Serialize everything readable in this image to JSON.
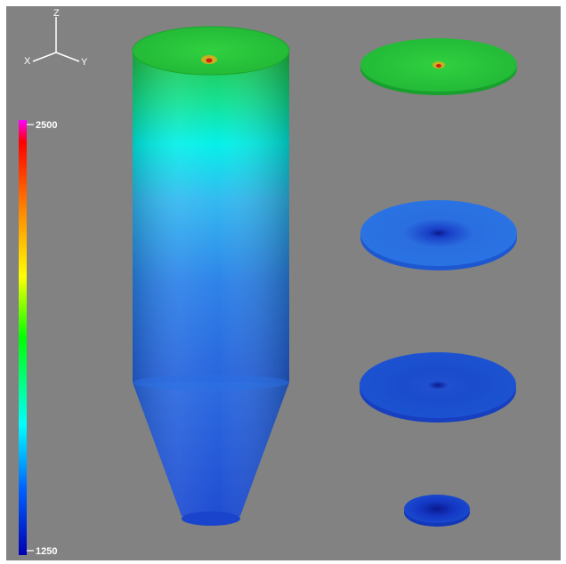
{
  "axes_triad": {
    "z_label": "Z",
    "x_label": "X",
    "y_label": "Y"
  },
  "colorbar": {
    "max_label": "2500",
    "min_label": "1250",
    "colormap": [
      "#ff00ff",
      "#ff0000",
      "#ff8800",
      "#ffff00",
      "#00ff00",
      "#00ffff",
      "#0055ff",
      "#0000aa"
    ]
  },
  "colors": {
    "background": "#828282",
    "cylinder_top": "#22c832",
    "cylinder_mid": "#00e6d2",
    "cylinder_low": "#2a72e6",
    "cone": "#1a4ad2",
    "slice_top": "#28c83c",
    "slice_mid": "#2a6ee0",
    "slice_low": "#1a4ccc",
    "slice_bottom": "#1238c0"
  }
}
